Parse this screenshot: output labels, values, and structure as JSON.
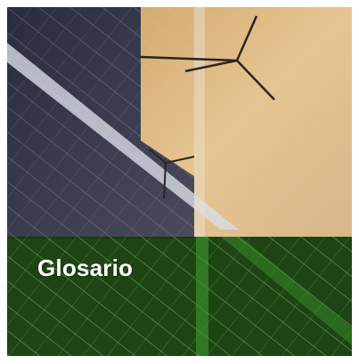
{
  "tile": {
    "title": "Glosario"
  }
}
